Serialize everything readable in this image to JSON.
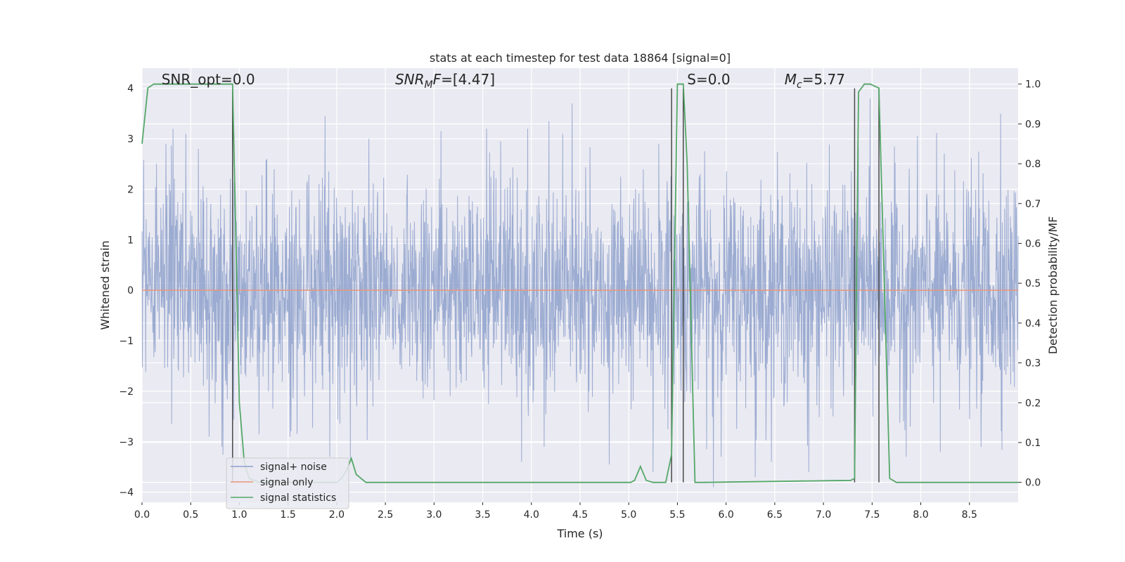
{
  "chart_data": {
    "type": "line",
    "title": "stats at each timestep for test data 18864 [signal=0]",
    "xlabel": "Time (s)",
    "ylabel_left": "Whitened strain",
    "ylabel_right": "Detection probability/MF",
    "xlim": [
      0.0,
      9.0
    ],
    "ylim_left": [
      -4.2,
      4.4
    ],
    "ylim_right": [
      -0.05,
      1.04
    ],
    "x_ticks": [
      0.0,
      0.5,
      1.0,
      1.5,
      2.0,
      2.5,
      3.0,
      3.5,
      4.0,
      4.5,
      5.0,
      5.5,
      6.0,
      6.5,
      7.0,
      7.5,
      8.0,
      8.5
    ],
    "x_tick_labels": [
      "0.0",
      "0.5",
      "1.0",
      "1.5",
      "2.0",
      "2.5",
      "3.0",
      "3.5",
      "4.0",
      "4.5",
      "5.0",
      "5.5",
      "6.0",
      "6.5",
      "7.0",
      "7.5",
      "8.0",
      "8.5"
    ],
    "y_left_ticks": [
      -4,
      -3,
      -2,
      -1,
      0,
      1,
      2,
      3,
      4
    ],
    "y_left_tick_labels": [
      "−4",
      "−3",
      "−2",
      "−1",
      "0",
      "1",
      "2",
      "3",
      "4"
    ],
    "y_right_ticks": [
      0.0,
      0.1,
      0.2,
      0.3,
      0.4,
      0.5,
      0.6,
      0.7,
      0.8,
      0.9,
      1.0
    ],
    "y_right_tick_labels": [
      "0.0",
      "0.1",
      "0.2",
      "0.3",
      "0.4",
      "0.5",
      "0.6",
      "0.7",
      "0.8",
      "0.9",
      "1.0"
    ],
    "grid": true,
    "legend_position": "lower-left",
    "annotations": [
      {
        "text": "SNR_opt=0.0",
        "x": 0.2
      },
      {
        "text": "SNR_MF=[4.47]",
        "x": 2.6
      },
      {
        "text": "S=0.0",
        "x": 5.6
      },
      {
        "text": "M_c=5.77",
        "x": 6.6
      }
    ],
    "vertical_lines_x": [
      0.93,
      5.44,
      5.56,
      7.32,
      7.57
    ],
    "series": [
      {
        "name": "signal+ noise",
        "color": "#8da0cb",
        "axis": "left",
        "description_samples": "whitened noise, amplitude roughly -3.5 to 3.5",
        "peak_x": [
          0.32,
          0.45,
          0.58,
          1.28,
          1.88,
          2.14,
          2.33,
          3.07,
          3.54,
          3.96,
          4.18,
          4.32,
          4.42,
          5.31,
          6.3,
          7.48,
          8.82
        ],
        "peak_y": [
          3.2,
          3.1,
          2.8,
          2.6,
          3.45,
          3.5,
          3.0,
          3.15,
          3.2,
          3.2,
          3.35,
          3.1,
          3.7,
          2.9,
          3.6,
          3.8,
          3.5
        ],
        "trough_x": [
          0.69,
          0.82,
          1.52,
          1.93,
          2.14,
          3.9,
          4.13,
          4.8,
          5.25,
          5.87,
          6.3,
          6.85,
          7.85,
          8.2,
          8.62
        ],
        "trough_y": [
          -2.9,
          -3.1,
          -2.9,
          -3.3,
          -3.4,
          -3.4,
          -3.1,
          -3.45,
          -3.6,
          -3.9,
          -3.7,
          -3.6,
          -3.3,
          -3.2,
          -3.1
        ]
      },
      {
        "name": "signal only",
        "color": "#e8967a",
        "axis": "left",
        "x": [
          0.0,
          9.0
        ],
        "y": [
          0.0,
          0.0
        ]
      },
      {
        "name": "signal statistics",
        "color": "#55a868",
        "axis": "right",
        "x": [
          0.0,
          0.06,
          0.12,
          0.2,
          0.93,
          1.0,
          1.05,
          1.1,
          1.2,
          1.35,
          1.6,
          1.9,
          2.0,
          2.05,
          2.1,
          2.15,
          2.2,
          2.3,
          5.02,
          5.06,
          5.12,
          5.18,
          5.25,
          5.38,
          5.44,
          5.5,
          5.56,
          5.6,
          5.68,
          5.75,
          7.28,
          7.32,
          7.36,
          7.42,
          7.48,
          7.57,
          7.68,
          7.75,
          9.0
        ],
        "y": [
          0.85,
          0.99,
          1.0,
          1.0,
          1.0,
          0.2,
          0.05,
          0.01,
          0.0,
          0.0,
          0.0,
          0.0,
          0.0,
          0.01,
          0.03,
          0.06,
          0.02,
          0.0,
          0.0,
          0.005,
          0.04,
          0.005,
          0.0,
          0.0,
          0.07,
          1.0,
          1.0,
          0.8,
          0.0,
          0.0,
          0.005,
          0.01,
          0.98,
          1.0,
          1.0,
          0.99,
          0.01,
          0.0,
          0.0
        ]
      }
    ]
  }
}
